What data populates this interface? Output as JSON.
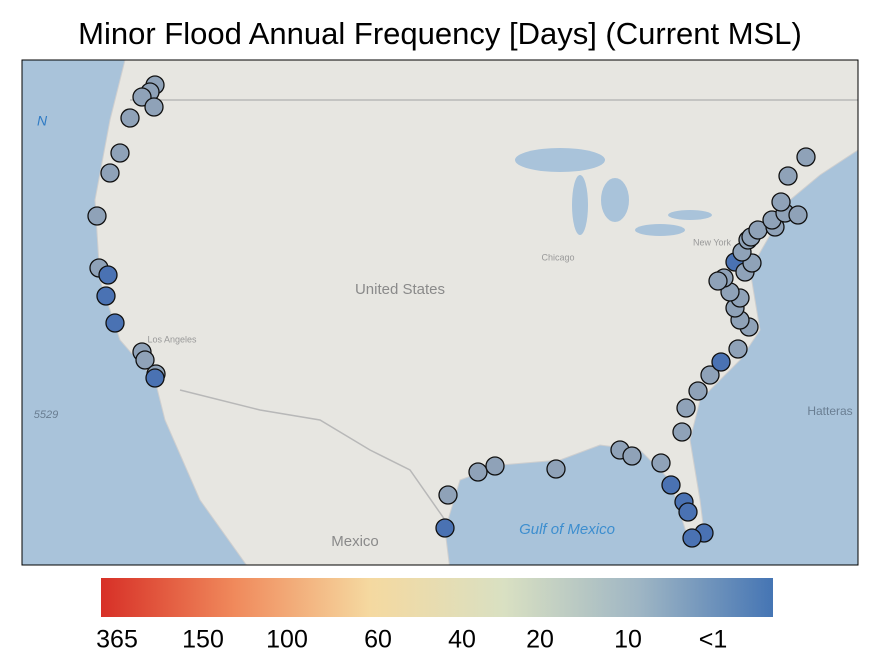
{
  "header": {
    "title": "Minor Flood Annual Frequency [Days] (Current MSL)"
  },
  "map": {
    "labels": [
      "United States",
      "Mexico",
      "Gulf of Mexico",
      "Chicago",
      "Los Angeles",
      "New York",
      "Hatteras",
      "N",
      "5529"
    ]
  },
  "colorbar": {
    "colors": [
      "#d73027",
      "#f08a5c",
      "#f5d9a0",
      "#d9e0c2",
      "#9fb6c4",
      "#4575b4"
    ],
    "ticks": [
      "365",
      "150",
      "100",
      "60",
      "40",
      "20",
      "10",
      "<1"
    ]
  }
}
